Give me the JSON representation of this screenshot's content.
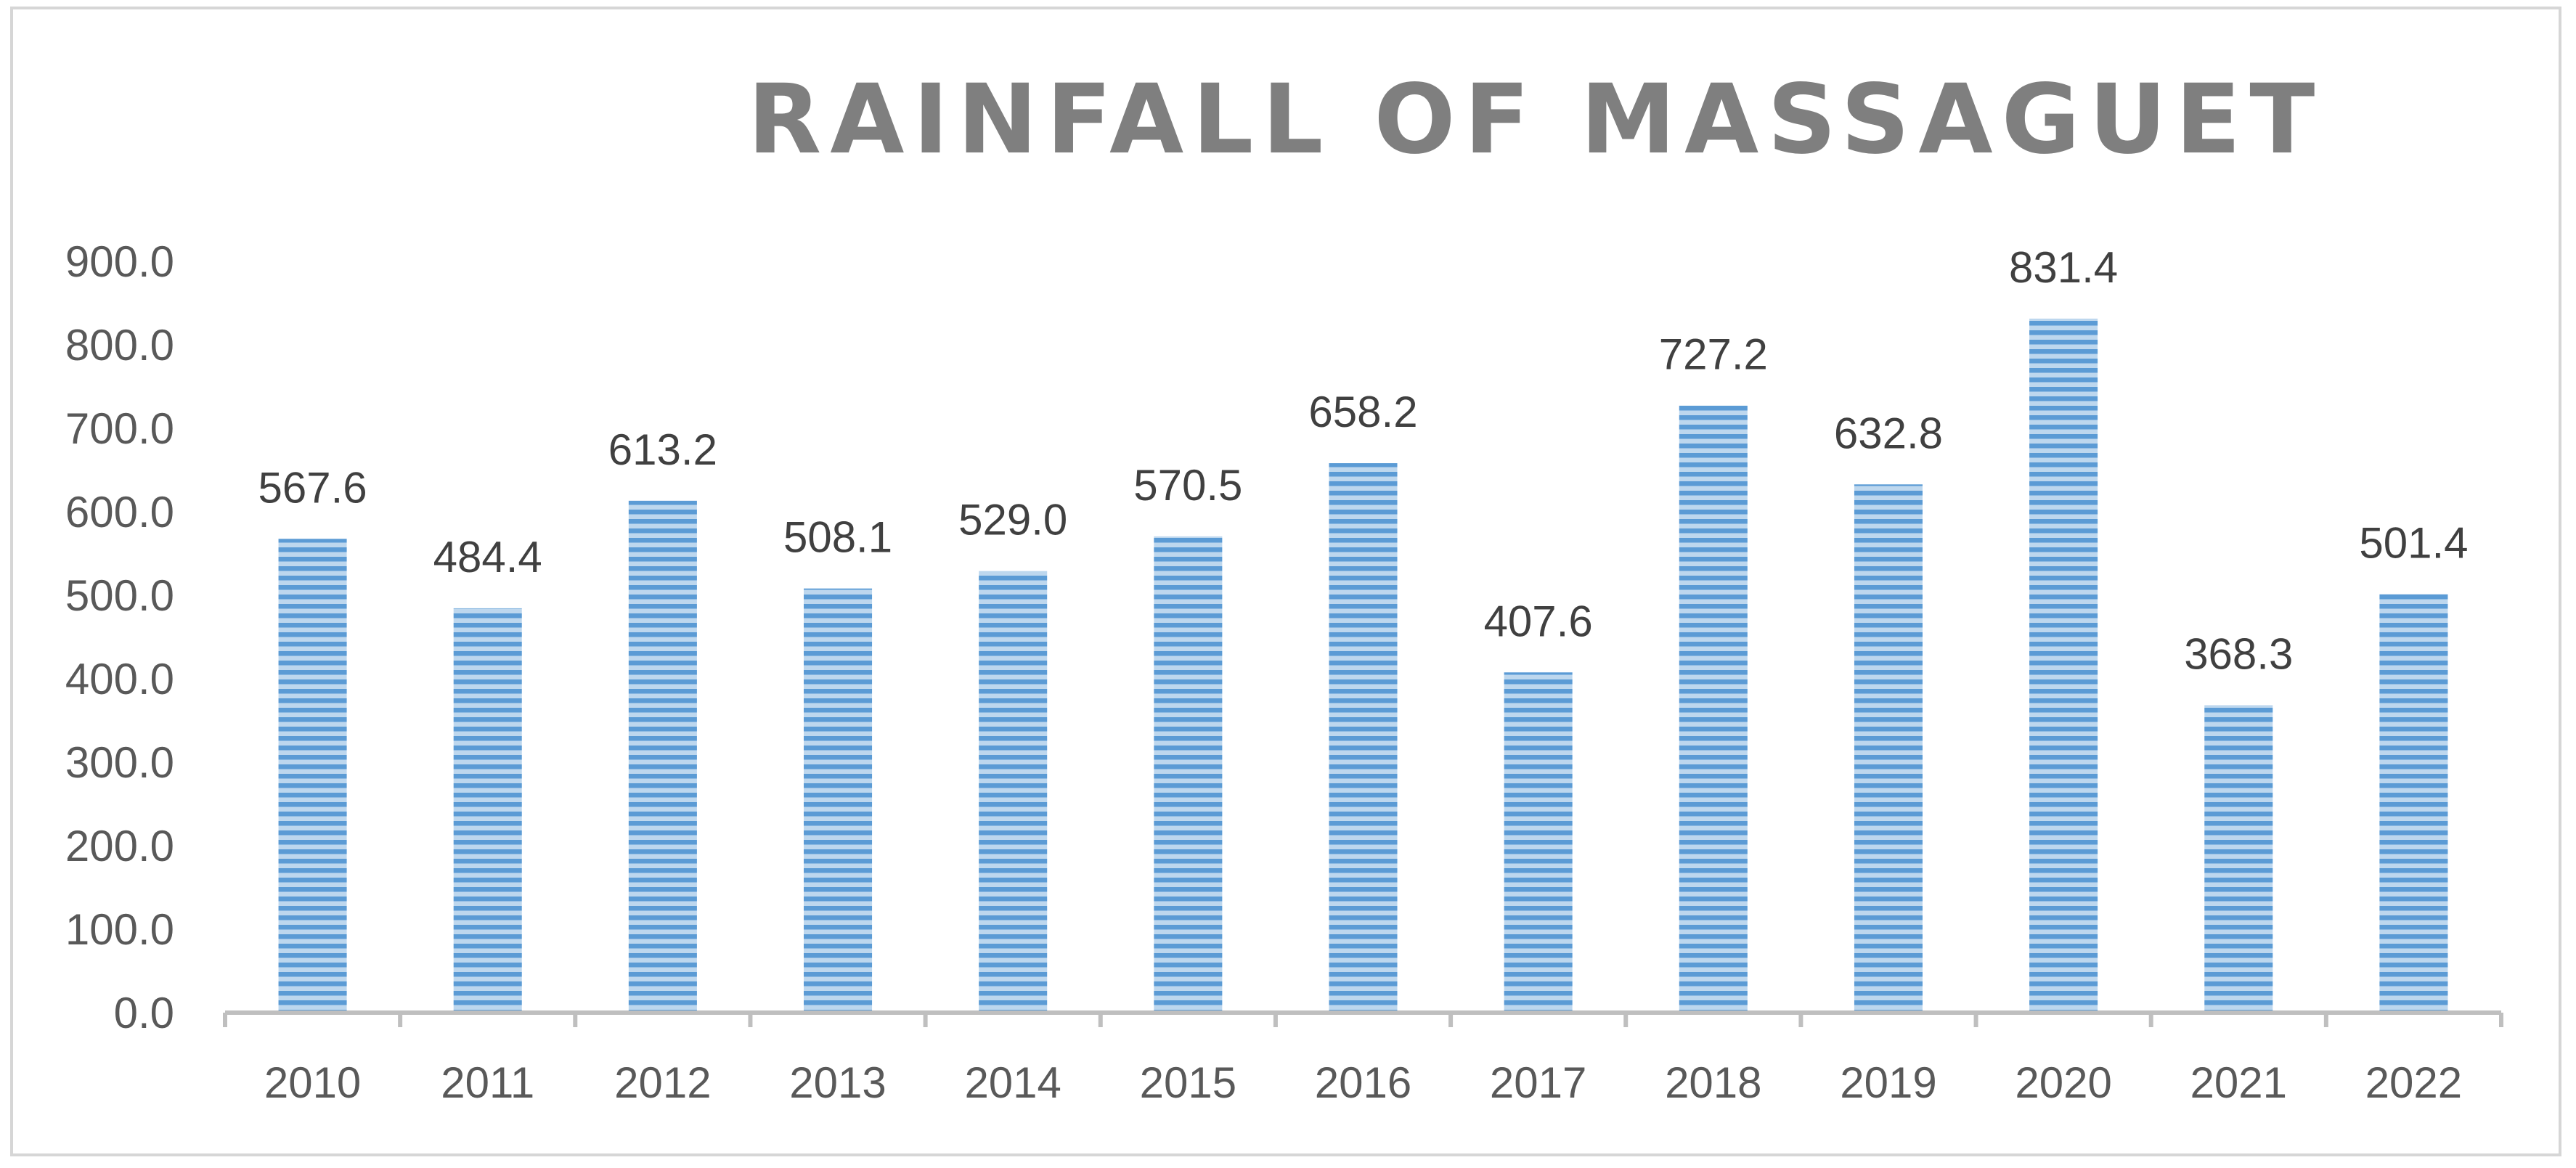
{
  "chart_data": {
    "type": "bar",
    "title": "RAINFALL OF MASSAGUET",
    "xlabel": "",
    "ylabel": "",
    "categories": [
      "2010",
      "2011",
      "2012",
      "2013",
      "2014",
      "2015",
      "2016",
      "2017",
      "2018",
      "2019",
      "2020",
      "2021",
      "2022"
    ],
    "values": [
      567.6,
      484.4,
      613.2,
      508.1,
      529.0,
      570.5,
      658.2,
      407.6,
      727.2,
      632.8,
      831.4,
      368.3,
      501.4
    ],
    "data_labels": [
      "567.6",
      "484.4",
      "613.2",
      "508.1",
      "529.0",
      "570.5",
      "658.2",
      "407.6",
      "727.2",
      "632.8",
      "831.4",
      "368.3",
      "501.4"
    ],
    "ylim": [
      0,
      900
    ],
    "y_ticks": [
      "0.0",
      "100.0",
      "200.0",
      "300.0",
      "400.0",
      "500.0",
      "600.0",
      "700.0",
      "800.0",
      "900.0"
    ],
    "grid": false,
    "legend": "none",
    "bar_color": "#5b9bd5",
    "bar_stripe_color": "#bdd7ee",
    "bar_pattern": "horizontal-stripes"
  }
}
